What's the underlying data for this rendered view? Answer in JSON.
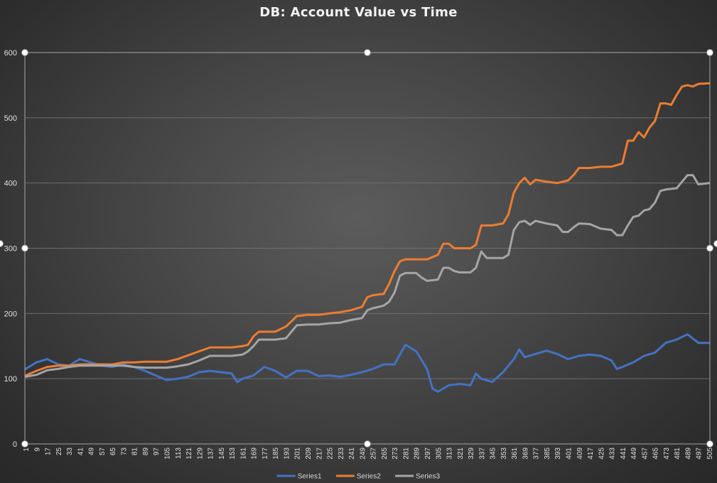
{
  "chart_data": {
    "type": "line",
    "title": "DB: Account Value vs Time",
    "xlabel": "",
    "ylabel": "",
    "ylim": [
      0,
      600
    ],
    "yticks": [
      0,
      100,
      200,
      300,
      400,
      500,
      600
    ],
    "xlim": [
      1,
      505
    ],
    "xticks": [
      1,
      9,
      17,
      25,
      33,
      41,
      49,
      57,
      65,
      73,
      81,
      89,
      97,
      105,
      113,
      121,
      129,
      137,
      145,
      153,
      161,
      169,
      177,
      185,
      193,
      201,
      209,
      217,
      225,
      233,
      241,
      249,
      257,
      265,
      273,
      281,
      289,
      297,
      305,
      313,
      321,
      329,
      337,
      345,
      353,
      361,
      369,
      377,
      385,
      393,
      401,
      409,
      417,
      425,
      433,
      441,
      449,
      457,
      465,
      473,
      481,
      489,
      497,
      505
    ],
    "grid": true,
    "legend_position": "bottom",
    "series": [
      {
        "name": "Series1",
        "color": "#4472c4",
        "points": [
          [
            1,
            115
          ],
          [
            9,
            125
          ],
          [
            17,
            130
          ],
          [
            25,
            122
          ],
          [
            33,
            120
          ],
          [
            41,
            130
          ],
          [
            49,
            125
          ],
          [
            57,
            120
          ],
          [
            65,
            118
          ],
          [
            73,
            122
          ],
          [
            81,
            118
          ],
          [
            89,
            112
          ],
          [
            97,
            105
          ],
          [
            105,
            98
          ],
          [
            113,
            100
          ],
          [
            121,
            103
          ],
          [
            129,
            110
          ],
          [
            137,
            112
          ],
          [
            145,
            110
          ],
          [
            153,
            108
          ],
          [
            157,
            95
          ],
          [
            161,
            100
          ],
          [
            169,
            105
          ],
          [
            177,
            118
          ],
          [
            185,
            112
          ],
          [
            193,
            102
          ],
          [
            201,
            112
          ],
          [
            209,
            112
          ],
          [
            217,
            104
          ],
          [
            225,
            105
          ],
          [
            233,
            103
          ],
          [
            241,
            106
          ],
          [
            249,
            110
          ],
          [
            257,
            115
          ],
          [
            265,
            122
          ],
          [
            273,
            122
          ],
          [
            281,
            152
          ],
          [
            289,
            142
          ],
          [
            297,
            115
          ],
          [
            301,
            85
          ],
          [
            305,
            80
          ],
          [
            313,
            90
          ],
          [
            321,
            92
          ],
          [
            329,
            90
          ],
          [
            333,
            108
          ],
          [
            337,
            100
          ],
          [
            345,
            95
          ],
          [
            353,
            110
          ],
          [
            361,
            130
          ],
          [
            365,
            145
          ],
          [
            369,
            133
          ],
          [
            377,
            138
          ],
          [
            385,
            143
          ],
          [
            393,
            138
          ],
          [
            401,
            130
          ],
          [
            409,
            135
          ],
          [
            417,
            137
          ],
          [
            425,
            135
          ],
          [
            433,
            128
          ],
          [
            437,
            115
          ],
          [
            441,
            118
          ],
          [
            449,
            125
          ],
          [
            457,
            135
          ],
          [
            465,
            140
          ],
          [
            473,
            155
          ],
          [
            481,
            160
          ],
          [
            489,
            168
          ],
          [
            497,
            155
          ],
          [
            505,
            155
          ]
        ]
      },
      {
        "name": "Series2",
        "color": "#ed7d31",
        "points": [
          [
            1,
            105
          ],
          [
            9,
            112
          ],
          [
            17,
            118
          ],
          [
            25,
            120
          ],
          [
            33,
            120
          ],
          [
            41,
            122
          ],
          [
            49,
            122
          ],
          [
            57,
            122
          ],
          [
            65,
            122
          ],
          [
            73,
            125
          ],
          [
            81,
            125
          ],
          [
            89,
            126
          ],
          [
            97,
            126
          ],
          [
            105,
            126
          ],
          [
            113,
            130
          ],
          [
            121,
            136
          ],
          [
            129,
            142
          ],
          [
            137,
            148
          ],
          [
            145,
            148
          ],
          [
            153,
            148
          ],
          [
            161,
            150
          ],
          [
            165,
            152
          ],
          [
            169,
            165
          ],
          [
            173,
            172
          ],
          [
            177,
            172
          ],
          [
            185,
            172
          ],
          [
            193,
            180
          ],
          [
            197,
            188
          ],
          [
            201,
            196
          ],
          [
            209,
            198
          ],
          [
            217,
            198
          ],
          [
            225,
            200
          ],
          [
            233,
            202
          ],
          [
            241,
            205
          ],
          [
            249,
            210
          ],
          [
            253,
            225
          ],
          [
            257,
            228
          ],
          [
            265,
            230
          ],
          [
            269,
            245
          ],
          [
            273,
            265
          ],
          [
            277,
            280
          ],
          [
            281,
            283
          ],
          [
            289,
            283
          ],
          [
            297,
            283
          ],
          [
            305,
            290
          ],
          [
            309,
            307
          ],
          [
            313,
            307
          ],
          [
            317,
            300
          ],
          [
            321,
            300
          ],
          [
            329,
            300
          ],
          [
            333,
            305
          ],
          [
            337,
            335
          ],
          [
            345,
            335
          ],
          [
            353,
            338
          ],
          [
            357,
            352
          ],
          [
            361,
            385
          ],
          [
            365,
            400
          ],
          [
            369,
            408
          ],
          [
            373,
            398
          ],
          [
            377,
            405
          ],
          [
            385,
            402
          ],
          [
            393,
            400
          ],
          [
            401,
            404
          ],
          [
            405,
            412
          ],
          [
            409,
            423
          ],
          [
            417,
            423
          ],
          [
            425,
            425
          ],
          [
            433,
            425
          ],
          [
            441,
            430
          ],
          [
            445,
            465
          ],
          [
            449,
            465
          ],
          [
            453,
            478
          ],
          [
            457,
            470
          ],
          [
            461,
            485
          ],
          [
            465,
            495
          ],
          [
            469,
            522
          ],
          [
            473,
            522
          ],
          [
            477,
            520
          ],
          [
            481,
            535
          ],
          [
            485,
            548
          ],
          [
            489,
            550
          ],
          [
            493,
            548
          ],
          [
            497,
            552
          ],
          [
            505,
            553
          ]
        ]
      },
      {
        "name": "Series3",
        "color": "#a5a5a5",
        "points": [
          [
            1,
            103
          ],
          [
            9,
            106
          ],
          [
            17,
            113
          ],
          [
            25,
            115
          ],
          [
            33,
            118
          ],
          [
            41,
            120
          ],
          [
            49,
            120
          ],
          [
            57,
            120
          ],
          [
            65,
            120
          ],
          [
            73,
            120
          ],
          [
            81,
            118
          ],
          [
            89,
            117
          ],
          [
            97,
            117
          ],
          [
            105,
            117
          ],
          [
            113,
            119
          ],
          [
            121,
            122
          ],
          [
            129,
            128
          ],
          [
            137,
            135
          ],
          [
            145,
            135
          ],
          [
            153,
            135
          ],
          [
            161,
            137
          ],
          [
            165,
            142
          ],
          [
            169,
            150
          ],
          [
            173,
            160
          ],
          [
            177,
            160
          ],
          [
            185,
            160
          ],
          [
            193,
            162
          ],
          [
            197,
            172
          ],
          [
            201,
            182
          ],
          [
            209,
            183
          ],
          [
            217,
            183
          ],
          [
            225,
            185
          ],
          [
            233,
            186
          ],
          [
            241,
            190
          ],
          [
            249,
            193
          ],
          [
            253,
            205
          ],
          [
            257,
            208
          ],
          [
            265,
            212
          ],
          [
            269,
            218
          ],
          [
            273,
            232
          ],
          [
            277,
            258
          ],
          [
            281,
            262
          ],
          [
            289,
            262
          ],
          [
            293,
            255
          ],
          [
            297,
            250
          ],
          [
            305,
            252
          ],
          [
            309,
            270
          ],
          [
            313,
            270
          ],
          [
            317,
            265
          ],
          [
            321,
            263
          ],
          [
            329,
            263
          ],
          [
            333,
            270
          ],
          [
            337,
            295
          ],
          [
            341,
            285
          ],
          [
            345,
            285
          ],
          [
            353,
            285
          ],
          [
            357,
            290
          ],
          [
            361,
            328
          ],
          [
            365,
            340
          ],
          [
            369,
            342
          ],
          [
            373,
            336
          ],
          [
            377,
            342
          ],
          [
            385,
            338
          ],
          [
            393,
            335
          ],
          [
            397,
            325
          ],
          [
            401,
            325
          ],
          [
            405,
            332
          ],
          [
            409,
            338
          ],
          [
            417,
            337
          ],
          [
            425,
            330
          ],
          [
            433,
            328
          ],
          [
            437,
            320
          ],
          [
            441,
            320
          ],
          [
            445,
            335
          ],
          [
            449,
            348
          ],
          [
            453,
            350
          ],
          [
            457,
            358
          ],
          [
            461,
            360
          ],
          [
            465,
            370
          ],
          [
            469,
            388
          ],
          [
            473,
            390
          ],
          [
            481,
            392
          ],
          [
            485,
            402
          ],
          [
            489,
            412
          ],
          [
            493,
            412
          ],
          [
            497,
            398
          ],
          [
            505,
            400
          ]
        ]
      }
    ]
  }
}
